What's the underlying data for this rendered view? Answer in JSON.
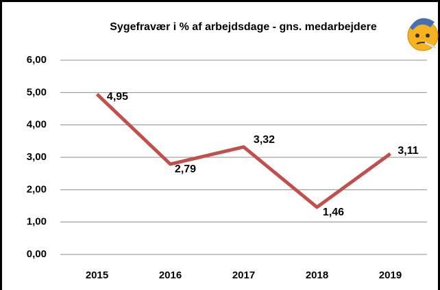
{
  "chart_data": {
    "type": "line",
    "title": "Sygefravær i % af arbejdsdage - gns. medarbejdere",
    "categories": [
      "2015",
      "2016",
      "2017",
      "2018",
      "2019"
    ],
    "values": [
      4.95,
      2.79,
      3.32,
      1.46,
      3.11
    ],
    "value_labels": [
      "4,95",
      "2,79",
      "3,32",
      "1,46",
      "3,11"
    ],
    "color": "#c0504d",
    "ylim": [
      0,
      6
    ],
    "yticks": [
      {
        "value": 0,
        "label": "0,00"
      },
      {
        "value": 1,
        "label": "1,00"
      },
      {
        "value": 2,
        "label": "2,00"
      },
      {
        "value": 3,
        "label": "3,00"
      },
      {
        "value": 4,
        "label": "4,00"
      },
      {
        "value": 5,
        "label": "5,00"
      },
      {
        "value": 6,
        "label": "6,00"
      }
    ],
    "grid": true
  }
}
